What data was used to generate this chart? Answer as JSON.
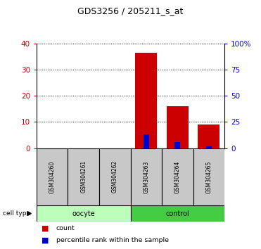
{
  "title": "GDS3256 / 205211_s_at",
  "samples": [
    "GSM304260",
    "GSM304261",
    "GSM304262",
    "GSM304263",
    "GSM304264",
    "GSM304265"
  ],
  "count_values": [
    0,
    0,
    0,
    36.5,
    16,
    9
  ],
  "percentile_values": [
    0,
    0,
    0,
    13.5,
    6,
    2
  ],
  "left_ylim": [
    0,
    40
  ],
  "right_ylim": [
    0,
    100
  ],
  "left_yticks": [
    0,
    10,
    20,
    30,
    40
  ],
  "right_yticks": [
    0,
    25,
    50,
    75,
    100
  ],
  "right_yticklabels": [
    "0",
    "25",
    "50",
    "75",
    "100%"
  ],
  "bar_color": "#CC0000",
  "percentile_color": "#0000CC",
  "oocyte_color": "#BBFFBB",
  "control_color": "#44CC44",
  "cell_type_groups": [
    {
      "label": "oocyte",
      "start": 0,
      "end": 3
    },
    {
      "label": "control",
      "start": 3,
      "end": 6
    }
  ],
  "legend_items": [
    "count",
    "percentile rank within the sample"
  ],
  "cell_type_label": "cell type",
  "tick_label_color_left": "#CC0000",
  "tick_label_color_right": "#0000CC"
}
